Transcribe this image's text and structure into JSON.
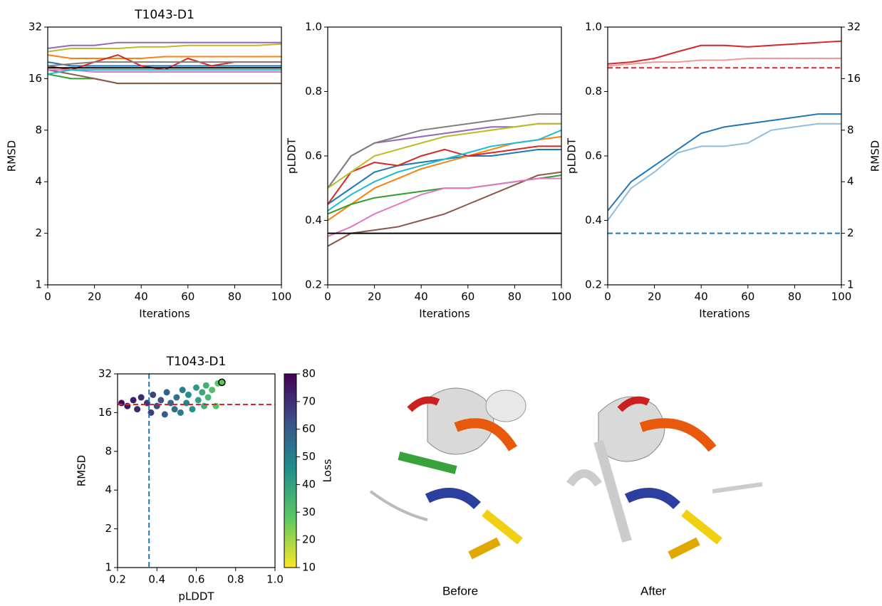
{
  "chart_data": [
    {
      "type": "line",
      "title": "T1043-D1",
      "xlabel": "Iterations",
      "ylabel": "RMSD",
      "x": [
        0,
        10,
        20,
        30,
        40,
        50,
        60,
        70,
        80,
        90,
        100
      ],
      "xlim": [
        0,
        100
      ],
      "xticks": [
        0,
        20,
        40,
        60,
        80,
        100
      ],
      "ylim": [
        1,
        32
      ],
      "yticks": [
        1,
        2,
        4,
        8,
        16,
        32
      ],
      "yscale": "log",
      "ytick_color": "#d62728",
      "series": [
        {
          "color": "#1f77b4",
          "values": [
            20,
            19,
            19,
            19,
            19,
            19,
            19,
            19,
            19,
            19,
            19
          ]
        },
        {
          "color": "#ff7f0e",
          "values": [
            22,
            21,
            21,
            21,
            21,
            21.5,
            21.5,
            21.5,
            21.5,
            21.5,
            21.5
          ]
        },
        {
          "color": "#2ca02c",
          "values": [
            17,
            16,
            16,
            15,
            15,
            15,
            15,
            15,
            15,
            15,
            15
          ]
        },
        {
          "color": "#d62728",
          "values": [
            19,
            18,
            20,
            22,
            19,
            18,
            21,
            19,
            20,
            20,
            20
          ]
        },
        {
          "color": "#9467bd",
          "values": [
            24,
            25,
            25,
            26,
            26,
            26,
            26,
            26,
            26,
            26,
            26
          ]
        },
        {
          "color": "#8c564b",
          "values": [
            18,
            17,
            16,
            15,
            15,
            15,
            15,
            15,
            15,
            15,
            15
          ]
        },
        {
          "color": "#e377c2",
          "values": [
            18,
            18,
            17.5,
            17.5,
            17.5,
            17.5,
            17.5,
            17.5,
            17.5,
            17.5,
            17.5
          ]
        },
        {
          "color": "#7f7f7f",
          "values": [
            19,
            19.5,
            20,
            20,
            20,
            20,
            20,
            20,
            20,
            20,
            20
          ]
        },
        {
          "color": "#bcbd22",
          "values": [
            23,
            24,
            24,
            24,
            24.5,
            24.5,
            25,
            25,
            25,
            25,
            25.5
          ]
        },
        {
          "color": "#17becf",
          "values": [
            17,
            18,
            18,
            18,
            18,
            18,
            18,
            18,
            18,
            18,
            18
          ]
        }
      ],
      "hlines": [
        {
          "value": 18.5,
          "color": "#000000",
          "style": "solid",
          "axis": "y"
        }
      ]
    },
    {
      "type": "line",
      "xlabel": "Iterations",
      "ylabel": "pLDDT",
      "x": [
        0,
        10,
        20,
        30,
        40,
        50,
        60,
        70,
        80,
        90,
        100
      ],
      "xlim": [
        0,
        100
      ],
      "xticks": [
        0,
        20,
        40,
        60,
        80,
        100
      ],
      "ylim": [
        0.2,
        1
      ],
      "yticks": [
        0.2,
        0.4,
        0.6,
        0.8,
        {
          "value": 1,
          "label": "1.0"
        }
      ],
      "ytick_color": "#1f77b4",
      "series": [
        {
          "color": "#1f77b4",
          "values": [
            0.45,
            0.5,
            0.55,
            0.57,
            0.58,
            0.59,
            0.6,
            0.6,
            0.61,
            0.62,
            0.62
          ]
        },
        {
          "color": "#ff7f0e",
          "values": [
            0.4,
            0.45,
            0.5,
            0.53,
            0.56,
            0.58,
            0.6,
            0.62,
            0.64,
            0.65,
            0.66
          ]
        },
        {
          "color": "#2ca02c",
          "values": [
            0.42,
            0.45,
            0.47,
            0.48,
            0.49,
            0.5,
            0.5,
            0.51,
            0.52,
            0.53,
            0.54
          ]
        },
        {
          "color": "#d62728",
          "values": [
            0.45,
            0.55,
            0.58,
            0.57,
            0.6,
            0.62,
            0.6,
            0.61,
            0.62,
            0.63,
            0.63
          ]
        },
        {
          "color": "#9467bd",
          "values": [
            0.5,
            0.6,
            0.64,
            0.65,
            0.66,
            0.67,
            0.68,
            0.69,
            0.69,
            0.7,
            0.7
          ]
        },
        {
          "color": "#8c564b",
          "values": [
            0.32,
            0.36,
            0.37,
            0.38,
            0.4,
            0.42,
            0.45,
            0.48,
            0.51,
            0.54,
            0.55
          ]
        },
        {
          "color": "#e377c2",
          "values": [
            0.35,
            0.38,
            0.42,
            0.45,
            0.48,
            0.5,
            0.5,
            0.51,
            0.52,
            0.53,
            0.53
          ]
        },
        {
          "color": "#7f7f7f",
          "values": [
            0.5,
            0.6,
            0.64,
            0.66,
            0.68,
            0.69,
            0.7,
            0.71,
            0.72,
            0.73,
            0.73
          ]
        },
        {
          "color": "#bcbd22",
          "values": [
            0.5,
            0.55,
            0.6,
            0.62,
            0.64,
            0.66,
            0.67,
            0.68,
            0.69,
            0.7,
            0.7
          ]
        },
        {
          "color": "#17becf",
          "values": [
            0.43,
            0.48,
            0.52,
            0.55,
            0.57,
            0.59,
            0.61,
            0.63,
            0.64,
            0.65,
            0.68
          ]
        }
      ],
      "hlines": [
        {
          "value": 0.36,
          "color": "#000000",
          "style": "solid",
          "axis": "y"
        }
      ]
    },
    {
      "type": "line",
      "xlabel": "Iterations",
      "ylabel": "pLDDT",
      "y2label": "RMSD",
      "x": [
        0,
        10,
        20,
        30,
        40,
        50,
        60,
        70,
        80,
        90,
        100
      ],
      "xlim": [
        0,
        100
      ],
      "xticks": [
        0,
        20,
        40,
        60,
        80,
        100
      ],
      "ylim": [
        0.2,
        1
      ],
      "yticks": [
        0.2,
        0.4,
        0.6,
        0.8,
        {
          "value": 1,
          "label": "1.0"
        }
      ],
      "ytick_color": "#1f77b4",
      "y2lim": [
        1,
        32
      ],
      "y2ticks": [
        1,
        2,
        4,
        8,
        16,
        32
      ],
      "y2scale": "log",
      "y2tick_color": "#d62728",
      "series": [
        {
          "color": "#d62728",
          "axis": "y2",
          "values": [
            19.5,
            20,
            21,
            23,
            25,
            25,
            24.5,
            25,
            25.5,
            26,
            26.5
          ]
        },
        {
          "color": "#f09898",
          "axis": "y2",
          "values": [
            19,
            19.5,
            20,
            20,
            20.5,
            20.5,
            21,
            21,
            21,
            21,
            21
          ]
        },
        {
          "color": "#1f77b4",
          "values": [
            0.43,
            0.52,
            0.57,
            0.62,
            0.67,
            0.69,
            0.7,
            0.71,
            0.72,
            0.73,
            0.73
          ]
        },
        {
          "color": "#92bcdb",
          "values": [
            0.4,
            0.5,
            0.55,
            0.61,
            0.63,
            0.63,
            0.64,
            0.68,
            0.69,
            0.7,
            0.7
          ]
        }
      ],
      "hlines": [
        {
          "value": 0.36,
          "color": "#1f77b4",
          "style": "dashed",
          "axis": "y"
        },
        {
          "value": 18.5,
          "color": "#d62728",
          "style": "dashed",
          "axis": "y2"
        }
      ]
    },
    {
      "type": "scatter",
      "title": "T1043-D1",
      "xlabel": "pLDDT",
      "ylabel": "RMSD",
      "clabel": "Loss",
      "xlim": [
        0.2,
        1
      ],
      "xticks": [
        0.2,
        0.4,
        0.6,
        0.8,
        {
          "value": 1,
          "label": "1.0"
        }
      ],
      "xtick_color": "#1f77b4",
      "ylim": [
        1,
        32
      ],
      "yticks": [
        1,
        2,
        4,
        8,
        16,
        32
      ],
      "yscale": "log",
      "ytick_color": "#d62728",
      "colormap": "viridis_r",
      "clim": [
        10,
        80
      ],
      "cticks": [
        10,
        20,
        30,
        40,
        50,
        60,
        70,
        80
      ],
      "x": [
        0.22,
        0.25,
        0.28,
        0.3,
        0.32,
        0.35,
        0.37,
        0.38,
        0.4,
        0.42,
        0.44,
        0.45,
        0.47,
        0.49,
        0.5,
        0.52,
        0.53,
        0.55,
        0.56,
        0.58,
        0.6,
        0.61,
        0.63,
        0.64,
        0.65,
        0.66,
        0.68,
        0.7,
        0.71,
        0.73
      ],
      "y": [
        19,
        18,
        20,
        17,
        21,
        19,
        16,
        22,
        18,
        20,
        15.5,
        23,
        19,
        17,
        21,
        16,
        24,
        19,
        22,
        17,
        25,
        20,
        23,
        18,
        26,
        21,
        24,
        18,
        27,
        27.5
      ],
      "c": [
        78,
        76,
        74,
        72,
        71,
        69,
        67,
        66,
        64,
        62,
        60,
        59,
        57,
        55,
        53,
        51,
        50,
        48,
        46,
        44,
        42,
        40,
        38,
        36,
        35,
        33,
        31,
        30,
        29,
        28
      ],
      "highlight": {
        "x": 0.73,
        "y": 27.5
      },
      "hlines": [
        {
          "value": 18.5,
          "color": "#d62728",
          "style": "dashed",
          "axis": "y"
        }
      ],
      "vlines": [
        {
          "value": 0.36,
          "color": "#1f77b4",
          "style": "dashed"
        }
      ]
    }
  ],
  "images": [
    {
      "label": "Before"
    },
    {
      "label": "After"
    }
  ]
}
